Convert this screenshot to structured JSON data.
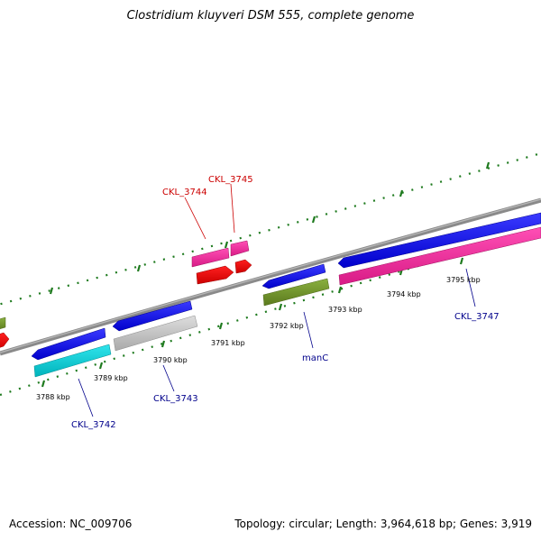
{
  "title": "Clostridium kluyveri DSM 555, complete genome",
  "footer": {
    "accession": "Accession: NC_009706",
    "topology": "Topology: circular; Length: 3,964,618 bp; Genes: 3,919"
  },
  "colors": {
    "backbone": "#8a8a8a",
    "scale_ticks": "#1e7a1e",
    "forward_gene": "#0a0aee",
    "magenta_gene": "#ee2a9a",
    "red_gene": "#ee0000",
    "olive_gene": "#6b8e23",
    "cyan_gene": "#00c8d0",
    "gray_gene": "#c4c4c4",
    "red_label": "#cc0000",
    "blue_label": "#00008b"
  },
  "scale_labels": [
    "3788 kbp",
    "3789 kbp",
    "3790 kbp",
    "3791 kbp",
    "3792 kbp",
    "3793 kbp",
    "3794 kbp",
    "3795 kbp"
  ],
  "gene_labels": [
    {
      "text": "CKL_3742",
      "color": "blue"
    },
    {
      "text": "CKL_3743",
      "color": "blue"
    },
    {
      "text": "manC",
      "color": "blue"
    },
    {
      "text": "CKL_3747",
      "color": "blue"
    },
    {
      "text": "CKL_3744",
      "color": "red"
    },
    {
      "text": "CKL_3745",
      "color": "red"
    }
  ]
}
